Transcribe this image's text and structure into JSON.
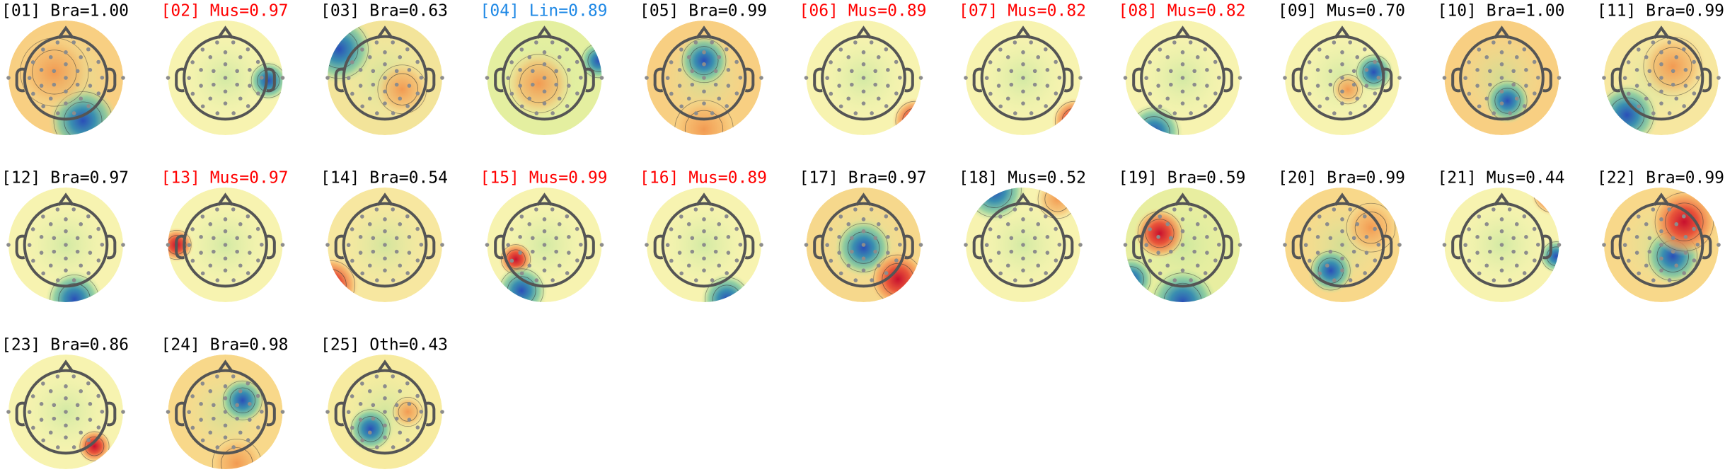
{
  "components": [
    {
      "label": "[01] Bra=1.00",
      "color": "#000000"
    },
    {
      "label": "[02] Mus=0.97",
      "color": "#ff0000"
    },
    {
      "label": "[03] Bra=0.63",
      "color": "#000000"
    },
    {
      "label": "[04] Lin=0.89",
      "color": "#1e88e5"
    },
    {
      "label": "[05] Bra=0.99",
      "color": "#000000"
    },
    {
      "label": "[06] Mus=0.89",
      "color": "#ff0000"
    },
    {
      "label": "[07] Mus=0.82",
      "color": "#ff0000"
    },
    {
      "label": "[08] Mus=0.82",
      "color": "#ff0000"
    },
    {
      "label": "[09] Mus=0.70",
      "color": "#000000"
    },
    {
      "label": "[10] Bra=1.00",
      "color": "#000000"
    },
    {
      "label": "[11] Bra=0.99",
      "color": "#000000"
    },
    {
      "label": "[12] Bra=0.97",
      "color": "#000000"
    },
    {
      "label": "[13] Mus=0.97",
      "color": "#ff0000"
    },
    {
      "label": "[14] Bra=0.54",
      "color": "#000000"
    },
    {
      "label": "[15] Mus=0.99",
      "color": "#ff0000"
    },
    {
      "label": "[16] Mus=0.89",
      "color": "#ff0000"
    },
    {
      "label": "[17] Bra=0.97",
      "color": "#000000"
    },
    {
      "label": "[18] Mus=0.52",
      "color": "#000000"
    },
    {
      "label": "[19] Bra=0.59",
      "color": "#000000"
    },
    {
      "label": "[20] Bra=0.99",
      "color": "#000000"
    },
    {
      "label": "[21] Mus=0.44",
      "color": "#000000"
    },
    {
      "label": "[22] Bra=0.99",
      "color": "#000000"
    },
    {
      "label": "[23] Bra=0.86",
      "color": "#000000"
    },
    {
      "label": "[24] Bra=0.98",
      "color": "#000000"
    },
    {
      "label": "[25] Oth=0.43",
      "color": "#000000"
    }
  ]
}
